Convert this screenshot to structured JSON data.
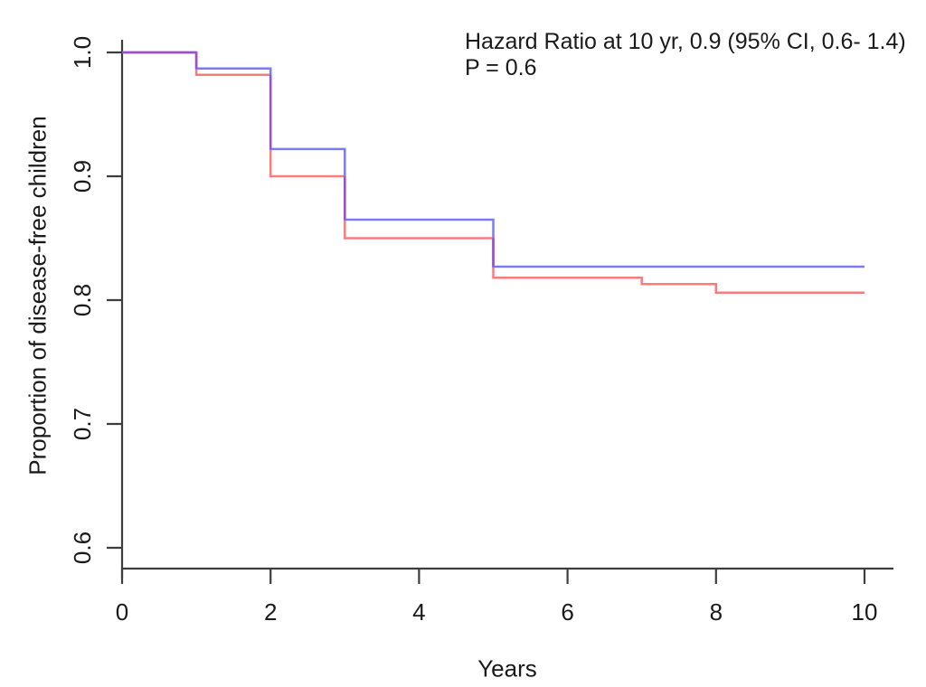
{
  "chart_data": {
    "type": "line",
    "subtype": "kaplan-meier-step",
    "title": "",
    "xlabel": "Years",
    "ylabel": "Proportion of disease-free children",
    "xlim": [
      0,
      10.4
    ],
    "ylim": [
      0.58,
      1.0
    ],
    "xticks": [
      "0",
      "2",
      "4",
      "6",
      "8",
      "10"
    ],
    "yticks": [
      "0.6",
      "0.7",
      "0.8",
      "0.9",
      "1.0"
    ],
    "grid": false,
    "legend": "none",
    "annotation_line1": "Hazard Ratio at 10 yr, 0.9 (95% CI, 0.6- 1.4)",
    "annotation_line2": "P = 0.6",
    "axis_color": "#3d3d3d",
    "text_color": "#1a1a1a",
    "overlap_color": "#9c51cb",
    "series": [
      {
        "name": "red",
        "color": "#f77d7d",
        "points": [
          [
            0,
            1.0
          ],
          [
            1,
            1.0
          ],
          [
            1,
            0.982
          ],
          [
            2,
            0.982
          ],
          [
            2,
            0.9
          ],
          [
            3,
            0.9
          ],
          [
            3,
            0.85
          ],
          [
            5,
            0.85
          ],
          [
            5,
            0.818
          ],
          [
            7,
            0.818
          ],
          [
            7,
            0.813
          ],
          [
            8,
            0.813
          ],
          [
            8,
            0.806
          ],
          [
            10,
            0.806
          ]
        ]
      },
      {
        "name": "blue",
        "color": "#7b7bf0",
        "points": [
          [
            0,
            1.0
          ],
          [
            1,
            1.0
          ],
          [
            1,
            0.987
          ],
          [
            2,
            0.987
          ],
          [
            2,
            0.922
          ],
          [
            3,
            0.922
          ],
          [
            3,
            0.865
          ],
          [
            5,
            0.865
          ],
          [
            5,
            0.827
          ],
          [
            10,
            0.827
          ]
        ]
      }
    ],
    "overlap_segments": [
      {
        "x1": 0,
        "y1": 1.0,
        "x2": 1,
        "y2": 1.0
      },
      {
        "x1": 1,
        "y1": 1.0,
        "x2": 1,
        "y2": 0.987
      },
      {
        "x1": 2,
        "y1": 0.982,
        "x2": 2,
        "y2": 0.922
      },
      {
        "x1": 3,
        "y1": 0.9,
        "x2": 3,
        "y2": 0.865
      },
      {
        "x1": 5,
        "y1": 0.85,
        "x2": 5,
        "y2": 0.827
      }
    ]
  }
}
